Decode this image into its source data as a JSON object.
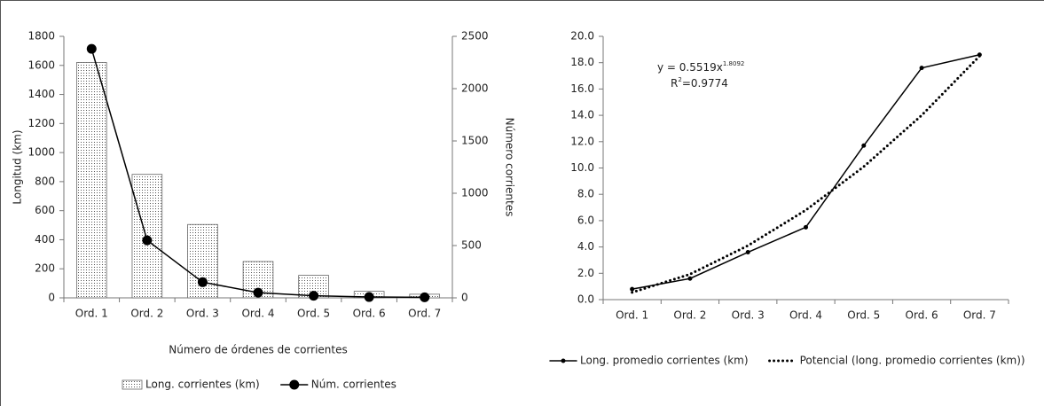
{
  "chart_data": [
    {
      "type": "bar",
      "x_label": "Número de órdenes de corrientes",
      "y_label": "Longitud (km)",
      "y2_label": "Número corrientes",
      "categories": [
        "Ord. 1",
        "Ord. 2",
        "Ord. 3",
        "Ord. 4",
        "Ord. 5",
        "Ord. 6",
        "Ord. 7"
      ],
      "series": [
        {
          "name": "Long. corrientes (km)",
          "kind": "bar",
          "pattern": "dots",
          "color": "#000000",
          "values": [
            1620,
            850,
            505,
            250,
            155,
            45,
            25
          ]
        },
        {
          "name": "Núm. corrientes",
          "kind": "line",
          "axis": "y2",
          "color": "#000000",
          "values": [
            2380,
            550,
            150,
            50,
            20,
            8,
            5
          ]
        }
      ],
      "ylim": [
        0,
        1800
      ],
      "yticks": [
        0,
        200,
        400,
        600,
        800,
        1000,
        1200,
        1400,
        1600,
        1800
      ],
      "y2lim": [
        0,
        2500
      ],
      "y2ticks": [
        0,
        500,
        1000,
        1500,
        2000,
        2500
      ],
      "grid": false,
      "legend": "bottom"
    },
    {
      "type": "line",
      "categories": [
        "Ord. 1",
        "Ord. 2",
        "Ord. 3",
        "Ord. 4",
        "Ord. 5",
        "Ord. 6",
        "Ord. 7"
      ],
      "series": [
        {
          "name": "Long. promedio corrientes (km)",
          "style": "solid",
          "color": "#000000",
          "values": [
            0.8,
            1.6,
            3.6,
            5.5,
            11.7,
            17.6,
            18.6
          ]
        },
        {
          "name": "Potencial (long. promedio corrientes (km))",
          "style": "dotted",
          "color": "#000000",
          "values": [
            0.55,
            1.93,
            4.1,
            6.8,
            10.1,
            14.0,
            18.5
          ]
        }
      ],
      "annotation": {
        "equation": {
          "base": "y = 0.5519x",
          "exponent": "1.8092"
        },
        "r2": {
          "base": "R",
          "exponent": "2",
          "rest": "=0.9774"
        }
      },
      "ylim": [
        0,
        20
      ],
      "yticks": [
        {
          "value": 0,
          "label": "0.0"
        },
        {
          "value": 2,
          "label": "2.0"
        },
        {
          "value": 4,
          "label": "4.0"
        },
        {
          "value": 6,
          "label": "6.0"
        },
        {
          "value": 8,
          "label": "8.0"
        },
        {
          "value": 10,
          "label": "10.0"
        },
        {
          "value": 12,
          "label": "12.0"
        },
        {
          "value": 14,
          "label": "14.0"
        },
        {
          "value": 16,
          "label": "16.0"
        },
        {
          "value": 18,
          "label": "18.0"
        },
        {
          "value": 20,
          "label": "20.0"
        }
      ],
      "grid": false,
      "legend": "bottom"
    }
  ]
}
